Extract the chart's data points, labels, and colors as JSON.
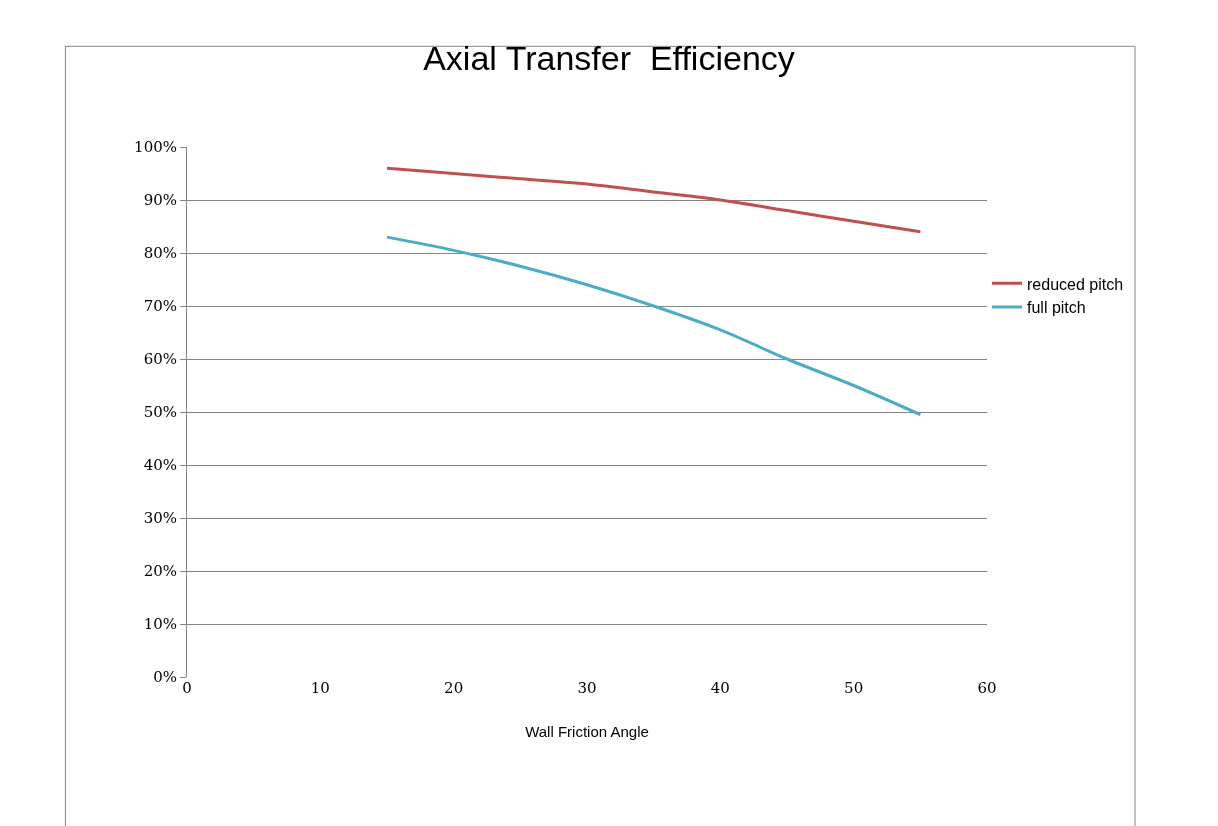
{
  "chart_data": {
    "type": "line",
    "title": "Axial Transfer  Efficiency",
    "xlabel": "Wall Friction Angle",
    "x": [
      15,
      20,
      25,
      30,
      35,
      40,
      45,
      50,
      55
    ],
    "series": [
      {
        "name": "reduced pitch",
        "color": "#c0504d",
        "values": [
          96,
          95,
          94,
          93,
          91.5,
          90,
          88,
          86,
          84
        ]
      },
      {
        "name": "full pitch",
        "color": "#4bacc6",
        "values": [
          83,
          80.5,
          77.5,
          74,
          70,
          65.5,
          60,
          55,
          49.5
        ]
      }
    ],
    "xlim": [
      0,
      60
    ],
    "xticks": [
      0,
      10,
      20,
      30,
      40,
      50,
      60
    ],
    "ylim": [
      0,
      100
    ],
    "yticks": [
      {
        "value": 0,
        "label": "0%"
      },
      {
        "value": 10,
        "label": "10%"
      },
      {
        "value": 20,
        "label": "20%"
      },
      {
        "value": 30,
        "label": "30%"
      },
      {
        "value": 40,
        "label": "40%"
      },
      {
        "value": 50,
        "label": "50%"
      },
      {
        "value": 60,
        "label": "60%"
      },
      {
        "value": 70,
        "label": "70%"
      },
      {
        "value": 80,
        "label": "80%"
      },
      {
        "value": 90,
        "label": "90%"
      },
      {
        "value": 100,
        "label": "100%"
      }
    ],
    "grid": "y",
    "legend": "right",
    "marker": "none",
    "line_style": "solid"
  }
}
